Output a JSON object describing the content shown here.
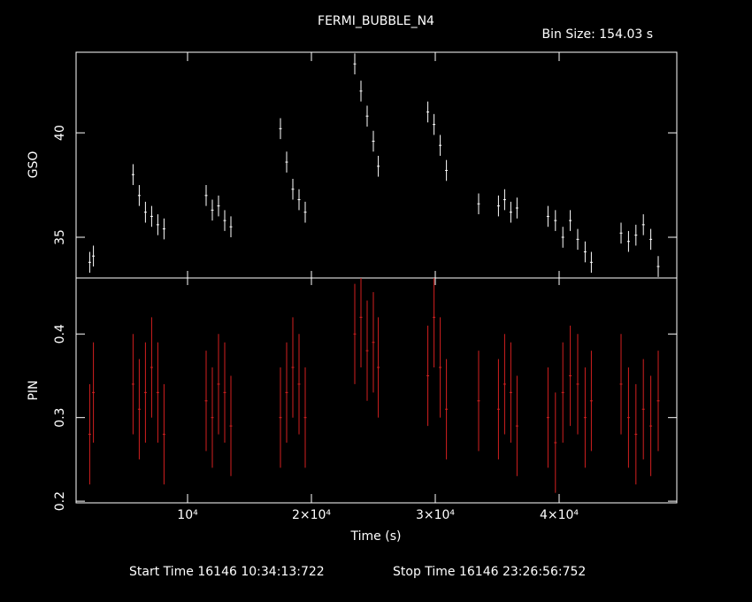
{
  "chart_data": [
    {
      "type": "errorbar",
      "title": "FERMI_BUBBLE_N4",
      "subtitle": "Bin Size: 154.03 s",
      "ylabel": "GSO",
      "x": [
        2100,
        2400,
        5600,
        6100,
        6600,
        7100,
        7600,
        8100,
        11500,
        12000,
        12500,
        13000,
        13500,
        17500,
        18000,
        18500,
        19000,
        19500,
        23500,
        24000,
        24500,
        25000,
        25400,
        29400,
        29900,
        30400,
        30900,
        33500,
        35100,
        35600,
        36100,
        36600,
        39100,
        39700,
        40300,
        40900,
        41500,
        42100,
        42600,
        45000,
        45600,
        46200,
        46800,
        47400,
        48000
      ],
      "series": [
        {
          "name": "GSO",
          "color": "#ffffff",
          "values": [
            33.8,
            34.1,
            38.0,
            37.0,
            36.2,
            36.0,
            35.6,
            35.4,
            37.0,
            36.3,
            36.5,
            35.8,
            35.5,
            40.2,
            38.6,
            37.3,
            36.8,
            36.2,
            43.3,
            42.0,
            40.8,
            39.6,
            38.4,
            41.0,
            40.4,
            39.4,
            38.2,
            36.6,
            36.5,
            36.8,
            36.2,
            36.4,
            36.0,
            35.8,
            35.0,
            35.8,
            34.9,
            34.3,
            33.8,
            35.2,
            34.8,
            35.1,
            35.6,
            34.9,
            33.6
          ],
          "errors": [
            0.5,
            0.5,
            0.5,
            0.5,
            0.5,
            0.5,
            0.5,
            0.5,
            0.5,
            0.5,
            0.5,
            0.5,
            0.5,
            0.5,
            0.5,
            0.5,
            0.5,
            0.5,
            0.5,
            0.5,
            0.5,
            0.5,
            0.5,
            0.5,
            0.5,
            0.5,
            0.5,
            0.5,
            0.5,
            0.5,
            0.5,
            0.5,
            0.5,
            0.5,
            0.5,
            0.5,
            0.5,
            0.5,
            0.5,
            0.5,
            0.5,
            0.5,
            0.5,
            0.5,
            0.5
          ]
        }
      ],
      "xlim": [
        1000,
        49500
      ],
      "ylim": [
        33.05,
        43.86
      ],
      "yticks": [
        35,
        40
      ]
    },
    {
      "type": "errorbar",
      "ylabel": "PIN",
      "xlabel": "Time (s)",
      "annotations": [
        "Start Time 16146 10:34:13:722",
        "Stop Time 16146 23:26:56:752"
      ],
      "x": [
        2100,
        2400,
        5600,
        6100,
        6600,
        7100,
        7600,
        8100,
        11500,
        12000,
        12500,
        13000,
        13500,
        17500,
        18000,
        18500,
        19000,
        19500,
        23500,
        24000,
        24500,
        25000,
        25400,
        29400,
        29900,
        30400,
        30900,
        33500,
        35100,
        35600,
        36100,
        36600,
        39100,
        39700,
        40300,
        40900,
        41500,
        42100,
        42600,
        45000,
        45600,
        46200,
        46800,
        47400,
        48000
      ],
      "series": [
        {
          "name": "PIN",
          "color": "#d42020",
          "values": [
            0.28,
            0.33,
            0.34,
            0.31,
            0.33,
            0.36,
            0.33,
            0.28,
            0.32,
            0.3,
            0.34,
            0.33,
            0.29,
            0.3,
            0.33,
            0.36,
            0.34,
            0.3,
            0.4,
            0.42,
            0.38,
            0.39,
            0.36,
            0.35,
            0.42,
            0.36,
            0.31,
            0.32,
            0.31,
            0.34,
            0.33,
            0.29,
            0.3,
            0.27,
            0.33,
            0.35,
            0.34,
            0.3,
            0.32,
            0.34,
            0.3,
            0.28,
            0.31,
            0.29,
            0.32
          ],
          "errors": [
            0.06,
            0.06,
            0.06,
            0.06,
            0.06,
            0.06,
            0.06,
            0.06,
            0.06,
            0.06,
            0.06,
            0.06,
            0.06,
            0.06,
            0.06,
            0.06,
            0.06,
            0.06,
            0.06,
            0.06,
            0.06,
            0.06,
            0.06,
            0.06,
            0.06,
            0.06,
            0.06,
            0.06,
            0.06,
            0.06,
            0.06,
            0.06,
            0.06,
            0.06,
            0.06,
            0.06,
            0.06,
            0.06,
            0.06,
            0.06,
            0.06,
            0.06,
            0.06,
            0.06,
            0.06
          ]
        }
      ],
      "xlim": [
        1000,
        49500
      ],
      "ylim": [
        0.198,
        0.467
      ],
      "yticks": [
        0.2,
        0.3,
        0.4
      ],
      "xticks": [
        {
          "value": 10000,
          "label": "10⁴"
        },
        {
          "value": 20000,
          "label": "2×10⁴"
        },
        {
          "value": 30000,
          "label": "3×10⁴"
        },
        {
          "value": 40000,
          "label": "4×10⁴"
        }
      ]
    }
  ]
}
